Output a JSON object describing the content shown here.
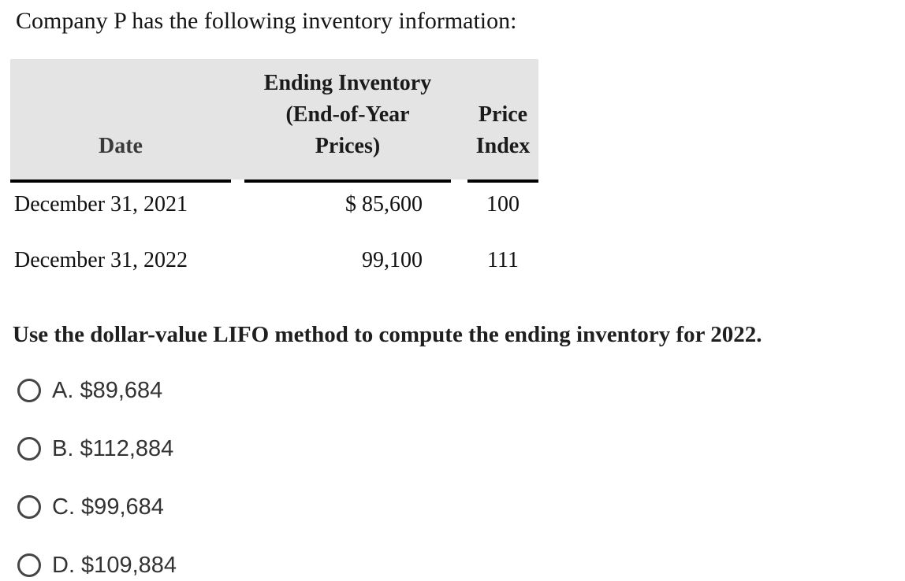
{
  "title": "Company P has the following inventory information:",
  "table": {
    "headers": {
      "date": "Date",
      "ending_inventory": [
        "Ending Inventory",
        "(End-of-Year",
        "Prices)"
      ],
      "price_index": [
        "Price",
        "Index"
      ]
    },
    "rows": [
      {
        "date": "December 31, 2021",
        "ending_inventory": "$ 85,600",
        "price_index": "100"
      },
      {
        "date": "December 31, 2022",
        "ending_inventory": "99,100",
        "price_index": "111"
      }
    ]
  },
  "question": "Use the dollar-value LIFO method to compute the ending inventory for 2022.",
  "options": [
    {
      "key": "A",
      "label": "A. $89,684",
      "selected": false
    },
    {
      "key": "B",
      "label": "B. $112,884",
      "selected": false
    },
    {
      "key": "C",
      "label": "C. $99,684",
      "selected": false
    },
    {
      "key": "D",
      "label": "D. $109,884",
      "selected": false
    }
  ],
  "colors": {
    "header_bg": "#e4e4e4",
    "rule": "#000000",
    "serif_text": "#111111",
    "question_text": "#1f1f1f",
    "option_text": "#333333",
    "radio_border": "#454545"
  }
}
